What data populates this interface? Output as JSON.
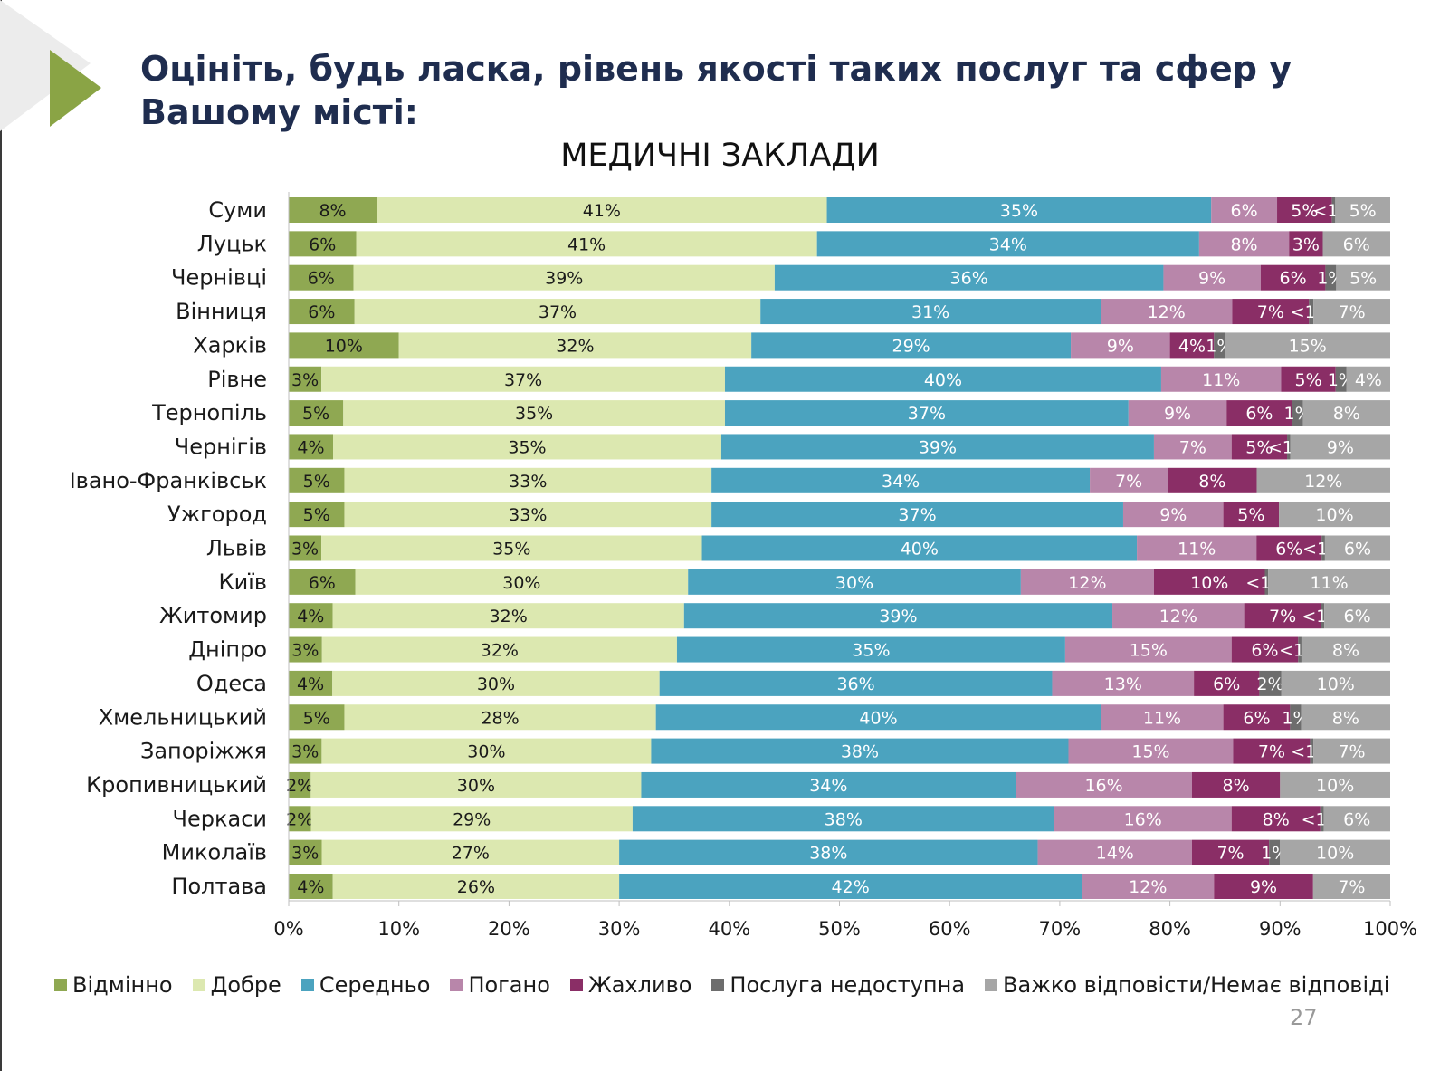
{
  "slide": {
    "title": "Оцініть, будь ласка, рівень якості таких послуг та сфер у Вашому місті:",
    "page_number": "27"
  },
  "colors": {
    "accent_arrow": "#8aa445",
    "title_text": "#1f2d4f"
  },
  "chart_data": {
    "type": "bar",
    "orientation": "horizontal",
    "stacked": true,
    "title": "МЕДИЧНІ ЗАКЛАДИ",
    "xlim": [
      0,
      100
    ],
    "x_ticks": [
      "0%",
      "10%",
      "20%",
      "30%",
      "40%",
      "50%",
      "60%",
      "70%",
      "80%",
      "90%",
      "100%"
    ],
    "legend_position": "bottom",
    "categories": [
      "Суми",
      "Луцьк",
      "Чернівці",
      "Вінниця",
      "Харків",
      "Рівне",
      "Тернопіль",
      "Чернігів",
      "Івано-Франківськ",
      "Ужгород",
      "Львів",
      "Київ",
      "Житомир",
      "Дніпро",
      "Одеса",
      "Хмельницький",
      "Запоріжжя",
      "Кропивницький",
      "Черкаси",
      "Миколаїв",
      "Полтава"
    ],
    "series": [
      {
        "name": "Відмінно",
        "color": "#8fa852",
        "values": [
          8,
          6,
          6,
          6,
          10,
          3,
          5,
          4,
          5,
          5,
          3,
          6,
          4,
          3,
          4,
          5,
          3,
          2,
          2,
          3,
          4
        ],
        "labels": [
          "8%",
          "6%",
          "6%",
          "6%",
          "10%",
          "3%",
          "5%",
          "4%",
          "5%",
          "5%",
          "3%",
          "6%",
          "4%",
          "3%",
          "4%",
          "5%",
          "3%",
          "2%",
          "2%",
          "3%",
          "4%"
        ]
      },
      {
        "name": "Добре",
        "color": "#dce8b0",
        "values": [
          41,
          41,
          39,
          37,
          32,
          37,
          35,
          35,
          33,
          33,
          35,
          30,
          32,
          32,
          30,
          28,
          30,
          30,
          29,
          27,
          26
        ],
        "labels": [
          "41%",
          "41%",
          "39%",
          "37%",
          "32%",
          "37%",
          "35%",
          "35%",
          "33%",
          "33%",
          "35%",
          "30%",
          "32%",
          "32%",
          "30%",
          "28%",
          "30%",
          "30%",
          "29%",
          "27%",
          "26%"
        ]
      },
      {
        "name": "Середньо",
        "color": "#4ba3bf",
        "values": [
          35,
          34,
          36,
          31,
          29,
          40,
          37,
          39,
          34,
          37,
          40,
          30,
          39,
          35,
          36,
          40,
          38,
          34,
          38,
          38,
          42
        ],
        "labels": [
          "35%",
          "34%",
          "36%",
          "31%",
          "29%",
          "40%",
          "37%",
          "39%",
          "34%",
          "37%",
          "40%",
          "30%",
          "39%",
          "35%",
          "36%",
          "40%",
          "38%",
          "34%",
          "38%",
          "38%",
          "42%"
        ]
      },
      {
        "name": "Погано",
        "color": "#b886aa",
        "values": [
          6,
          8,
          9,
          12,
          9,
          11,
          9,
          7,
          7,
          9,
          11,
          12,
          12,
          15,
          13,
          11,
          15,
          16,
          16,
          14,
          12
        ],
        "labels": [
          "6%",
          "8%",
          "9%",
          "12%",
          "9%",
          "11%",
          "9%",
          "7%",
          "7%",
          "9%",
          "11%",
          "12%",
          "12%",
          "15%",
          "13%",
          "11%",
          "15%",
          "16%",
          "16%",
          "14%",
          "12%"
        ]
      },
      {
        "name": "Жахливо",
        "color": "#8a2e66",
        "values": [
          5,
          3,
          6,
          7,
          4,
          5,
          6,
          5,
          8,
          5,
          6,
          10,
          7,
          6,
          6,
          6,
          7,
          8,
          8,
          7,
          9
        ],
        "labels": [
          "5%",
          "3%",
          "6%",
          "7%",
          "4%",
          "5%",
          "6%",
          "5%",
          "8%",
          "5%",
          "6%",
          "10%",
          "7%",
          "6%",
          "6%",
          "6%",
          "7%",
          "8%",
          "8%",
          "7%",
          "9%"
        ]
      },
      {
        "name": "Послуга недоступна",
        "color": "#6d6d6d",
        "values": [
          0.3,
          0,
          1,
          0.4,
          1,
          1,
          1,
          0.3,
          0,
          0,
          0.3,
          0.3,
          0.3,
          0.3,
          2,
          1,
          0.3,
          0,
          0.3,
          1,
          0
        ],
        "labels": [
          "<1%",
          "",
          "1%",
          "<1%",
          "1%",
          "1%",
          "1%",
          "<1%",
          "",
          "",
          "<1%",
          "<1%",
          "<1%",
          "<1%",
          "2%",
          "1%",
          "<1%",
          "",
          "<1%",
          "1%",
          ""
        ]
      },
      {
        "name": "Важко відповісти/Немає відповіді",
        "color": "#a6a6a6",
        "values": [
          5,
          6,
          5,
          7,
          15,
          4,
          8,
          9,
          12,
          10,
          6,
          11,
          6,
          8,
          10,
          8,
          7,
          10,
          6,
          10,
          7
        ],
        "labels": [
          "5%",
          "6%",
          "5%",
          "7%",
          "15%",
          "4%",
          "8%",
          "9%",
          "12%",
          "10%",
          "6%",
          "11%",
          "6%",
          "8%",
          "10%",
          "8%",
          "7%",
          "10%",
          "6%",
          "10%",
          "7%"
        ]
      }
    ]
  }
}
